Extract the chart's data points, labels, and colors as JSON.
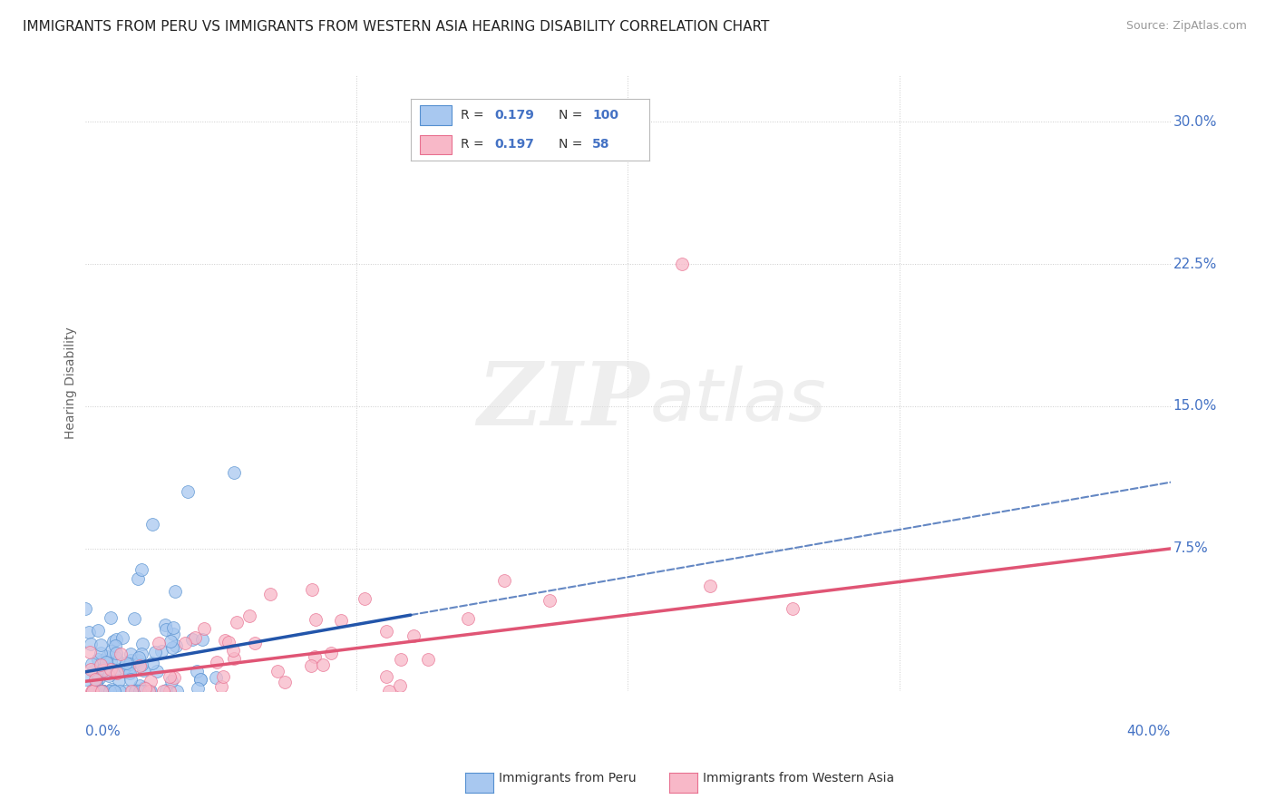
{
  "title": "IMMIGRANTS FROM PERU VS IMMIGRANTS FROM WESTERN ASIA HEARING DISABILITY CORRELATION CHART",
  "source": "Source: ZipAtlas.com",
  "ylabel": "Hearing Disability",
  "xlim": [
    0.0,
    0.4
  ],
  "ylim": [
    0.0,
    0.325
  ],
  "yticks": [
    0.0,
    0.075,
    0.15,
    0.225,
    0.3
  ],
  "ytick_labels": [
    "",
    "7.5%",
    "15.0%",
    "22.5%",
    "30.0%"
  ],
  "color_peru": "#a8c8f0",
  "color_peru_edge": "#5590d0",
  "color_peru_line": "#2255aa",
  "color_westernasia": "#f8b8c8",
  "color_westernasia_edge": "#e87090",
  "color_westernasia_line": "#e05575",
  "background_color": "#ffffff",
  "grid_color": "#cccccc",
  "axis_label_color": "#4472c4",
  "title_fontsize": 11,
  "seed": 42,
  "peru_n": 100,
  "westernasia_n": 58
}
